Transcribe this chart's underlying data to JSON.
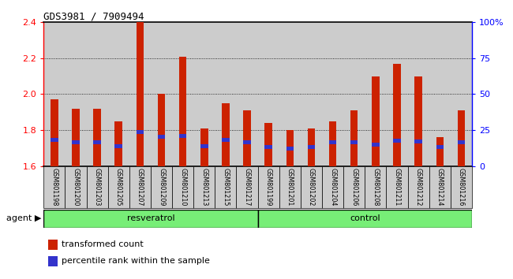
{
  "title": "GDS3981 / 7909494",
  "samples": [
    "GSM801198",
    "GSM801200",
    "GSM801203",
    "GSM801205",
    "GSM801207",
    "GSM801209",
    "GSM801210",
    "GSM801213",
    "GSM801215",
    "GSM801217",
    "GSM801199",
    "GSM801201",
    "GSM801202",
    "GSM801204",
    "GSM801206",
    "GSM801208",
    "GSM801211",
    "GSM801212",
    "GSM801214",
    "GSM801216"
  ],
  "transformed_count": [
    1.97,
    1.92,
    1.92,
    1.85,
    2.4,
    2.0,
    2.21,
    1.81,
    1.95,
    1.91,
    1.84,
    1.8,
    1.81,
    1.85,
    1.91,
    2.1,
    2.17,
    2.1,
    1.76,
    1.91
  ],
  "blue_position": [
    1.735,
    1.72,
    1.72,
    1.7,
    1.78,
    1.75,
    1.755,
    1.7,
    1.735,
    1.72,
    1.695,
    1.685,
    1.695,
    1.72,
    1.72,
    1.71,
    1.73,
    1.725,
    1.695,
    1.72
  ],
  "resveratrol_count": 10,
  "control_count": 10,
  "ylim_left": [
    1.6,
    2.4
  ],
  "ylim_right": [
    0,
    100
  ],
  "yticks_left": [
    1.6,
    1.8,
    2.0,
    2.2,
    2.4
  ],
  "yticks_right": [
    0,
    25,
    50,
    75,
    100
  ],
  "bar_color": "#cc2200",
  "blue_color": "#3333cc",
  "bar_bg": "#cccccc",
  "group_label_bg": "#77ee77",
  "group_labels": [
    "resveratrol",
    "control"
  ],
  "legend_label1": "transformed count",
  "legend_label2": "percentile rank within the sample",
  "agent_label": "agent",
  "red_bar_width": 0.35,
  "gray_bar_width": 1.0
}
